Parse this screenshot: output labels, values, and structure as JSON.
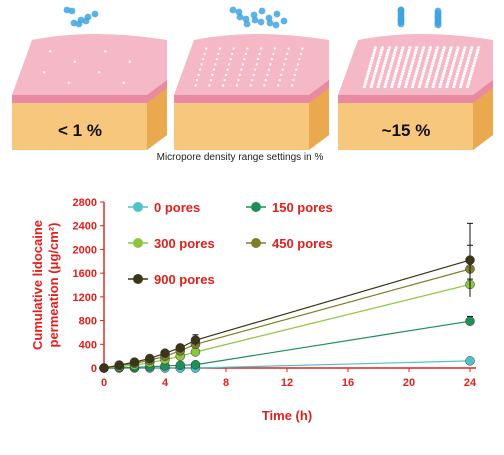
{
  "panels": [
    {
      "label": "< 1 %",
      "pore_grid": 4
    },
    {
      "label": "",
      "pore_grid": 8
    },
    {
      "label": "~15 %",
      "pore_grid": 16
    }
  ],
  "caption": "Micropore density range settings  in %",
  "colors": {
    "skin_top": "#f4b8c6",
    "skin_side": "#e98aa3",
    "tissue": "#f7c77e",
    "droplet": "#3fa3e0",
    "axis_red": "#e0201c"
  },
  "chart_data": {
    "type": "line",
    "xlabel": "Time (h)",
    "ylabel_line1": "Cumulative lidocaine",
    "ylabel_line2": "permeation (μg/cm²)",
    "xlim": [
      0,
      24
    ],
    "ylim": [
      0,
      2800
    ],
    "xticks": [
      0,
      4,
      8,
      12,
      16,
      20,
      24
    ],
    "yticks": [
      0,
      400,
      800,
      1200,
      1600,
      2000,
      2400,
      2800
    ],
    "legend_position": "top-left",
    "series": [
      {
        "name": "0 pores",
        "color": "#4dc3c8",
        "points": [
          [
            0,
            0
          ],
          [
            1,
            0
          ],
          [
            2,
            0
          ],
          [
            3,
            0
          ],
          [
            4,
            0
          ],
          [
            5,
            0
          ],
          [
            6,
            0
          ],
          [
            24,
            120
          ]
        ],
        "errors": [
          0,
          0,
          0,
          0,
          0,
          0,
          0,
          30
        ]
      },
      {
        "name": "150 pores",
        "color": "#1f8f5a",
        "points": [
          [
            0,
            0
          ],
          [
            1,
            5
          ],
          [
            2,
            10
          ],
          [
            3,
            20
          ],
          [
            4,
            35
          ],
          [
            5,
            45
          ],
          [
            6,
            55
          ],
          [
            24,
            790
          ]
        ],
        "errors": [
          0,
          0,
          0,
          0,
          0,
          0,
          0,
          80
        ]
      },
      {
        "name": "300 pores",
        "color": "#8cc63f",
        "points": [
          [
            0,
            0
          ],
          [
            1,
            20
          ],
          [
            2,
            50
          ],
          [
            3,
            90
          ],
          [
            4,
            140
          ],
          [
            5,
            200
          ],
          [
            6,
            270
          ],
          [
            24,
            1410
          ]
        ],
        "errors": [
          0,
          0,
          0,
          0,
          0,
          0,
          0,
          90
        ]
      },
      {
        "name": "450 pores",
        "color": "#7f7f2a",
        "points": [
          [
            0,
            0
          ],
          [
            1,
            40
          ],
          [
            2,
            80
          ],
          [
            3,
            130
          ],
          [
            4,
            200
          ],
          [
            5,
            290
          ],
          [
            6,
            400
          ],
          [
            24,
            1670
          ]
        ],
        "errors": [
          0,
          0,
          0,
          0,
          0,
          0,
          0,
          400
        ]
      },
      {
        "name": "900 pores",
        "color": "#3a3617",
        "points": [
          [
            0,
            0
          ],
          [
            1,
            50
          ],
          [
            2,
            100
          ],
          [
            3,
            160
          ],
          [
            4,
            250
          ],
          [
            5,
            340
          ],
          [
            6,
            470
          ],
          [
            24,
            1820
          ]
        ],
        "errors": [
          0,
          0,
          0,
          0,
          0,
          0,
          90,
          620
        ]
      }
    ]
  }
}
